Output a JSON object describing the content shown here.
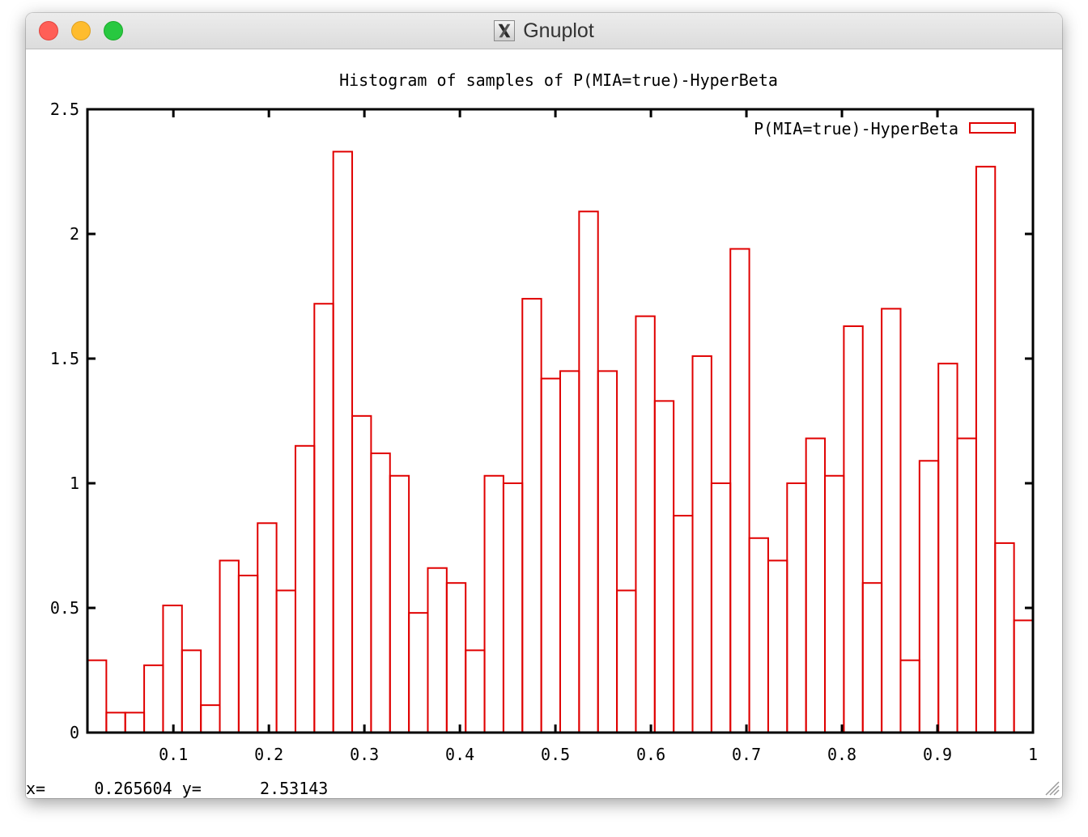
{
  "window": {
    "title": "Gnuplot",
    "icon": "x11-icon"
  },
  "status_bar": {
    "x_label": "x=",
    "x_value": "0.265604",
    "y_label": "y=",
    "y_value": "2.53143"
  },
  "colors": {
    "series": "#e00000",
    "axis": "#000000",
    "text": "#000000"
  },
  "chart_data": {
    "type": "bar",
    "title": "Histogram of samples of P(MIA=true)-HyperBeta",
    "xlabel": "",
    "ylabel": "",
    "xlim": [
      0.01,
      1.0
    ],
    "ylim": [
      0,
      2.5
    ],
    "xticks": [
      0.1,
      0.2,
      0.3,
      0.4,
      0.5,
      0.6,
      0.7,
      0.8,
      0.9,
      1.0
    ],
    "xtick_labels": [
      "0.1",
      "0.2",
      "0.3",
      "0.4",
      "0.5",
      "0.6",
      "0.7",
      "0.8",
      "0.9",
      "1"
    ],
    "yticks": [
      0,
      0.5,
      1,
      1.5,
      2,
      2.5
    ],
    "ytick_labels": [
      "0",
      "0.5",
      "1",
      "1.5",
      "2",
      "2.5"
    ],
    "legend_position": "top-right",
    "grid": false,
    "bin_width": 0.0198,
    "series": [
      {
        "name": "P(MIA=true)-HyperBeta",
        "bin_starts": [
          0.01,
          0.0298,
          0.0496,
          0.0694,
          0.0892,
          0.109,
          0.1288,
          0.1486,
          0.1684,
          0.1882,
          0.208,
          0.2278,
          0.2476,
          0.2674,
          0.2872,
          0.307,
          0.3268,
          0.3466,
          0.3664,
          0.3862,
          0.406,
          0.4258,
          0.4456,
          0.4654,
          0.4852,
          0.505,
          0.5248,
          0.5446,
          0.5644,
          0.5842,
          0.604,
          0.6238,
          0.6436,
          0.6634,
          0.6832,
          0.703,
          0.7228,
          0.7426,
          0.7624,
          0.7822,
          0.802,
          0.8218,
          0.8416,
          0.8614,
          0.8812,
          0.901,
          0.9208,
          0.9406,
          0.9604,
          0.9802
        ],
        "values": [
          0.29,
          0.08,
          0.08,
          0.27,
          0.51,
          0.33,
          0.11,
          0.69,
          0.63,
          0.84,
          0.57,
          1.15,
          1.72,
          2.33,
          1.27,
          1.12,
          1.03,
          0.48,
          0.66,
          0.6,
          0.33,
          1.03,
          1.0,
          1.74,
          1.42,
          1.45,
          2.09,
          1.45,
          0.57,
          1.67,
          1.33,
          0.87,
          1.51,
          1.0,
          1.94,
          0.78,
          0.69,
          1.0,
          1.18,
          1.03,
          1.63,
          0.6,
          1.7,
          0.29,
          1.09,
          1.48,
          1.18,
          2.27,
          0.76,
          0.45
        ]
      }
    ]
  }
}
